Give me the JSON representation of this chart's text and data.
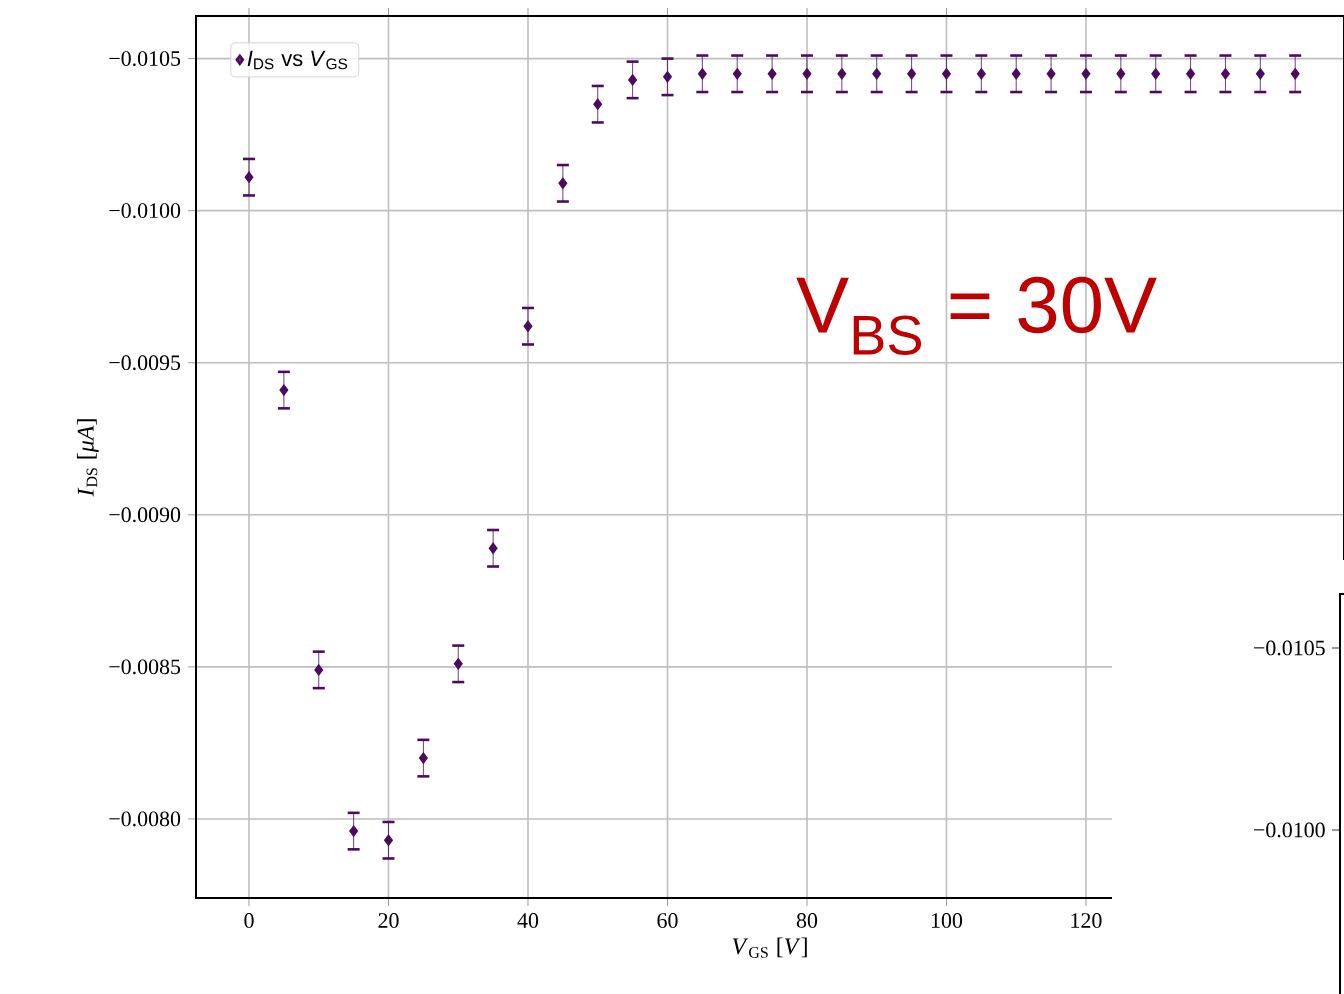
{
  "chart_data": [
    {
      "type": "scatter",
      "xlabel": "*V*$_{GS}$ [*V*]",
      "ylabel": "*I*$_{DS}$ [*μA*]",
      "x": [
        0,
        5,
        10,
        15,
        20,
        25,
        30,
        35,
        40,
        45,
        50,
        55,
        60,
        65,
        70,
        75,
        80,
        85,
        90,
        95,
        100,
        105,
        110,
        115,
        120,
        125,
        130,
        135,
        140,
        145,
        150
      ],
      "series": [
        {
          "name": "*I*$_{DS}$ vs *V*$_{GS}$",
          "color": "#4b0c5f",
          "values": [
            -0.01011,
            -0.00941,
            -0.00849,
            -0.00796,
            -0.00793,
            -0.0082,
            -0.00851,
            -0.00889,
            -0.00962,
            -0.01009,
            -0.01035,
            -0.01043,
            -0.01044,
            -0.01045,
            -0.01045,
            -0.01045,
            -0.01045,
            -0.01045,
            -0.01045,
            -0.01045,
            -0.01045,
            -0.01045,
            -0.01045,
            -0.01045,
            -0.01045,
            -0.01045,
            -0.01045,
            -0.01045,
            -0.01045,
            -0.01045,
            -0.01045
          ],
          "errors": [
            6e-05,
            6e-05,
            6e-05,
            6e-05,
            6e-05,
            6e-05,
            6e-05,
            6e-05,
            6e-05,
            6e-05,
            6e-05,
            6e-05,
            6e-05,
            6e-05,
            6e-05,
            6e-05,
            6e-05,
            6e-05,
            6e-05,
            6e-05,
            6e-05,
            6e-05,
            6e-05,
            6e-05,
            6e-05,
            6e-05,
            6e-05,
            6e-05,
            6e-05,
            6e-05,
            6e-05
          ]
        }
      ],
      "marker": "diamond",
      "legend": "top left",
      "grid": true,
      "xlim": [
        -7.6,
        157
      ],
      "xticks": [
        0,
        20,
        40,
        60,
        80,
        100,
        120
      ],
      "ylim": [
        -0.00774,
        -0.01064
      ],
      "yticks": [
        {
          "value": -0.0105,
          "label": "−0.0105"
        },
        {
          "value": -0.01,
          "label": "−0.0100"
        },
        {
          "value": -0.0095,
          "label": "−0.0095"
        },
        {
          "value": -0.009,
          "label": "−0.0090"
        },
        {
          "value": -0.0085,
          "label": "−0.0085"
        },
        {
          "value": -0.008,
          "label": "−0.0080"
        }
      ],
      "annotations": [
        "V$_{BS}$ = 30V"
      ]
    },
    {
      "type": "other",
      "annotations": [
        "−0.0105",
        "−0.0100"
      ]
    }
  ]
}
